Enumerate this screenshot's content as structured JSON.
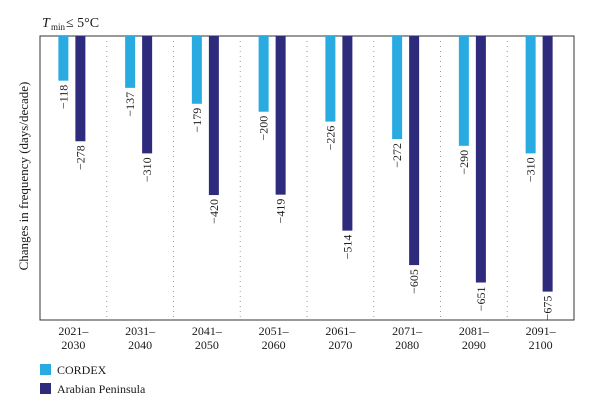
{
  "chart_data": {
    "type": "bar",
    "title": {
      "symbol": "T",
      "subscript": "min",
      "condition": " ≤ 5°C"
    },
    "ylabel": "Changes in frequency (days/decade)",
    "xlabel": "",
    "ylim": [
      -750,
      0
    ],
    "grid": false,
    "legend_position": "bottom-left",
    "categories": [
      [
        "2021–",
        "2030"
      ],
      [
        "2031–",
        "2040"
      ],
      [
        "2041–",
        "2050"
      ],
      [
        "2051–",
        "2060"
      ],
      [
        "2061–",
        "2070"
      ],
      [
        "2071–",
        "2080"
      ],
      [
        "2081–",
        "2090"
      ],
      [
        "2091–",
        "2100"
      ]
    ],
    "series": [
      {
        "name": "CORDEX",
        "color": "#29abe2",
        "values": [
          -118,
          -137,
          -179,
          -200,
          -226,
          -272,
          -290,
          -310
        ],
        "labels": [
          "−118",
          "−137",
          "−179",
          "−200",
          "−226",
          "−272",
          "−290",
          "−310"
        ]
      },
      {
        "name": "Arabian Peninsula",
        "color": "#2e2a7c",
        "values": [
          -278,
          -310,
          -420,
          -419,
          -514,
          -605,
          -651,
          -675
        ],
        "labels": [
          "−278",
          "−310",
          "−420",
          "−419",
          "−514",
          "−605",
          "−651",
          "−675"
        ]
      }
    ]
  }
}
